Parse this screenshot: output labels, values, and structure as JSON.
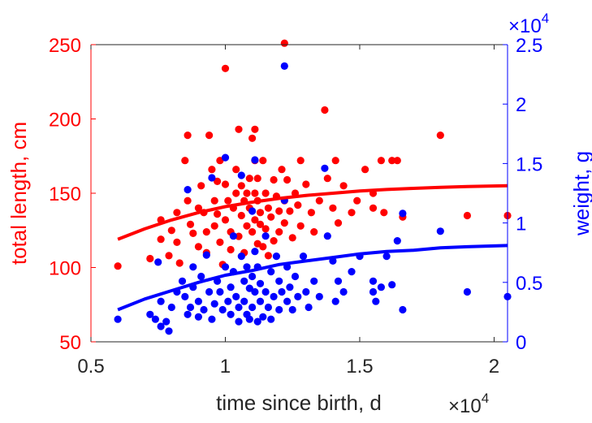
{
  "chart_data": {
    "type": "scatter",
    "xlabel": "time since birth, d",
    "ylabel_left": "total length, cm",
    "ylabel_right": "weight, g",
    "x_exponent_label": "×10",
    "x_exponent": "4",
    "y2_exponent_label": "×10",
    "y2_exponent": "4",
    "xlim": [
      0.5,
      2.05
    ],
    "xticks": [
      0.5,
      1,
      1.5,
      2
    ],
    "xtick_labels": [
      "0.5",
      "1",
      "1.5",
      "2"
    ],
    "ylim": [
      50,
      250
    ],
    "yticks": [
      50,
      100,
      150,
      200,
      250
    ],
    "ytick_labels": [
      "50",
      "100",
      "150",
      "200",
      "250"
    ],
    "y2lim": [
      0,
      2.5
    ],
    "y2ticks": [
      0,
      0.5,
      1,
      1.5,
      2,
      2.5
    ],
    "y2tick_labels": [
      "0",
      "0.5",
      "1",
      "1.5",
      "2",
      "2.5"
    ],
    "grid": false,
    "colors": {
      "length": "#ff0000",
      "weight": "#0000ff",
      "axis": "#262626"
    },
    "series": [
      {
        "axis": "left",
        "color": "#ff0000",
        "points": [
          [
            0.6,
            101
          ],
          [
            0.72,
            106
          ],
          [
            0.76,
            119
          ],
          [
            0.76,
            132
          ],
          [
            0.79,
            108
          ],
          [
            0.8,
            125
          ],
          [
            0.82,
            137
          ],
          [
            0.82,
            117
          ],
          [
            0.83,
            103
          ],
          [
            0.85,
            172
          ],
          [
            0.86,
            189
          ],
          [
            0.86,
            145
          ],
          [
            0.87,
            129
          ],
          [
            0.88,
            123
          ],
          [
            0.9,
            114
          ],
          [
            0.9,
            140
          ],
          [
            0.91,
            155
          ],
          [
            0.92,
            137
          ],
          [
            0.93,
            124
          ],
          [
            0.93,
            110
          ],
          [
            0.94,
            189
          ],
          [
            0.95,
            166
          ],
          [
            0.96,
            145
          ],
          [
            0.96,
            128
          ],
          [
            0.97,
            158
          ],
          [
            0.97,
            136
          ],
          [
            0.98,
            172
          ],
          [
            0.98,
            117
          ],
          [
            0.99,
            102
          ],
          [
            1.0,
            234
          ],
          [
            1.0,
            156
          ],
          [
            1.0,
            132
          ],
          [
            1.01,
            145
          ],
          [
            1.02,
            112
          ],
          [
            1.02,
            124
          ],
          [
            1.03,
            140
          ],
          [
            1.04,
            150
          ],
          [
            1.04,
            166
          ],
          [
            1.05,
            193
          ],
          [
            1.05,
            121
          ],
          [
            1.06,
            135
          ],
          [
            1.06,
            155
          ],
          [
            1.07,
            145
          ],
          [
            1.07,
            110
          ],
          [
            1.08,
            128
          ],
          [
            1.08,
            150
          ],
          [
            1.09,
            160
          ],
          [
            1.09,
            140
          ],
          [
            1.1,
            187
          ],
          [
            1.1,
            124
          ],
          [
            1.11,
            193
          ],
          [
            1.11,
            172
          ],
          [
            1.11,
            150
          ],
          [
            1.11,
            132
          ],
          [
            1.12,
            116
          ],
          [
            1.12,
            145
          ],
          [
            1.12,
            160
          ],
          [
            1.13,
            137
          ],
          [
            1.13,
            129
          ],
          [
            1.14,
            172
          ],
          [
            1.14,
            114
          ],
          [
            1.15,
            150
          ],
          [
            1.15,
            126
          ],
          [
            1.16,
            140
          ],
          [
            1.16,
            108
          ],
          [
            1.17,
            134
          ],
          [
            1.18,
            159
          ],
          [
            1.18,
            118
          ],
          [
            1.19,
            148
          ],
          [
            1.2,
            138
          ],
          [
            1.2,
            124
          ],
          [
            1.21,
            166
          ],
          [
            1.22,
            251
          ],
          [
            1.22,
            145
          ],
          [
            1.22,
            130
          ],
          [
            1.23,
            159
          ],
          [
            1.24,
            138
          ],
          [
            1.25,
            120
          ],
          [
            1.26,
            150
          ],
          [
            1.27,
            142
          ],
          [
            1.28,
            172
          ],
          [
            1.28,
            128
          ],
          [
            1.3,
            156
          ],
          [
            1.32,
            137
          ],
          [
            1.33,
            124
          ],
          [
            1.35,
            145
          ],
          [
            1.37,
            206
          ],
          [
            1.38,
            160
          ],
          [
            1.4,
            140
          ],
          [
            1.41,
            172
          ],
          [
            1.42,
            130
          ],
          [
            1.44,
            155
          ],
          [
            1.47,
            137
          ],
          [
            1.49,
            145
          ],
          [
            1.52,
            166
          ],
          [
            1.55,
            150
          ],
          [
            1.55,
            140
          ],
          [
            1.58,
            172
          ],
          [
            1.59,
            137
          ],
          [
            1.62,
            172
          ],
          [
            1.64,
            172
          ],
          [
            1.66,
            134
          ],
          [
            1.8,
            189
          ],
          [
            1.9,
            135
          ],
          [
            2.05,
            135
          ]
        ]
      },
      {
        "axis": "right",
        "color": "#0000ff",
        "points": [
          [
            0.6,
            0.19
          ],
          [
            0.72,
            0.23
          ],
          [
            0.74,
            0.19
          ],
          [
            0.75,
            0.67
          ],
          [
            0.76,
            0.34
          ],
          [
            0.76,
            0.13
          ],
          [
            0.78,
            0.17
          ],
          [
            0.79,
            0.09
          ],
          [
            0.8,
            0.29
          ],
          [
            0.82,
            0.42
          ],
          [
            0.84,
            0.51
          ],
          [
            0.85,
            0.38
          ],
          [
            0.86,
            1.28
          ],
          [
            0.86,
            0.23
          ],
          [
            0.87,
            0.29
          ],
          [
            0.88,
            0.63
          ],
          [
            0.88,
            0.46
          ],
          [
            0.9,
            0.34
          ],
          [
            0.9,
            0.21
          ],
          [
            0.91,
            0.55
          ],
          [
            0.92,
            0.27
          ],
          [
            0.93,
            0.73
          ],
          [
            0.94,
            0.42
          ],
          [
            0.95,
            1.38
          ],
          [
            0.95,
            0.19
          ],
          [
            0.96,
            0.32
          ],
          [
            0.97,
            0.51
          ],
          [
            0.98,
            0.42
          ],
          [
            0.99,
            0.27
          ],
          [
            1.0,
            1.55
          ],
          [
            1.0,
            0.63
          ],
          [
            1.01,
            0.34
          ],
          [
            1.02,
            0.46
          ],
          [
            1.02,
            0.23
          ],
          [
            1.03,
            0.89
          ],
          [
            1.03,
            0.59
          ],
          [
            1.04,
            0.38
          ],
          [
            1.05,
            0.29
          ],
          [
            1.05,
            0.17
          ],
          [
            1.06,
            1.4
          ],
          [
            1.06,
            0.72
          ],
          [
            1.07,
            0.51
          ],
          [
            1.07,
            0.34
          ],
          [
            1.08,
            0.63
          ],
          [
            1.08,
            0.23
          ],
          [
            1.09,
            0.45
          ],
          [
            1.09,
            0.19
          ],
          [
            1.1,
            1.1
          ],
          [
            1.1,
            0.55
          ],
          [
            1.1,
            0.29
          ],
          [
            1.11,
            1.53
          ],
          [
            1.11,
            0.76
          ],
          [
            1.11,
            0.42
          ],
          [
            1.12,
            0.17
          ],
          [
            1.12,
            0.63
          ],
          [
            1.13,
            0.34
          ],
          [
            1.13,
            0.49
          ],
          [
            1.14,
            0.21
          ],
          [
            1.15,
            0.89
          ],
          [
            1.15,
            0.42
          ],
          [
            1.16,
            0.29
          ],
          [
            1.17,
            0.59
          ],
          [
            1.17,
            0.19
          ],
          [
            1.18,
            0.38
          ],
          [
            1.19,
            0.72
          ],
          [
            1.2,
            0.51
          ],
          [
            1.2,
            0.27
          ],
          [
            1.21,
            0.42
          ],
          [
            1.22,
            2.32
          ],
          [
            1.22,
            1.19
          ],
          [
            1.23,
            0.63
          ],
          [
            1.23,
            0.34
          ],
          [
            1.24,
            0.46
          ],
          [
            1.25,
            0.27
          ],
          [
            1.26,
            0.55
          ],
          [
            1.27,
            0.38
          ],
          [
            1.29,
            0.72
          ],
          [
            1.3,
            0.42
          ],
          [
            1.31,
            0.29
          ],
          [
            1.33,
            0.51
          ],
          [
            1.35,
            0.38
          ],
          [
            1.37,
            1.46
          ],
          [
            1.38,
            0.89
          ],
          [
            1.4,
            0.68
          ],
          [
            1.41,
            0.34
          ],
          [
            1.42,
            0.51
          ],
          [
            1.44,
            0.42
          ],
          [
            1.47,
            0.59
          ],
          [
            1.5,
            0.72
          ],
          [
            1.55,
            0.51
          ],
          [
            1.55,
            0.42
          ],
          [
            1.56,
            0.34
          ],
          [
            1.58,
            0.46
          ],
          [
            1.6,
            0.72
          ],
          [
            1.62,
            0.48
          ],
          [
            1.64,
            0.85
          ],
          [
            1.66,
            1.08
          ],
          [
            1.66,
            0.27
          ],
          [
            1.8,
            0.93
          ],
          [
            1.9,
            0.42
          ],
          [
            2.05,
            0.38
          ]
        ]
      },
      {
        "axis": "left",
        "type": "line",
        "color": "#ff0000",
        "points": [
          [
            0.6,
            119
          ],
          [
            0.7,
            126
          ],
          [
            0.8,
            132
          ],
          [
            0.9,
            137
          ],
          [
            1.0,
            141
          ],
          [
            1.1,
            144
          ],
          [
            1.2,
            146.5
          ],
          [
            1.3,
            148.5
          ],
          [
            1.4,
            150
          ],
          [
            1.5,
            151.5
          ],
          [
            1.6,
            152.5
          ],
          [
            1.7,
            153.3
          ],
          [
            1.8,
            154
          ],
          [
            1.9,
            154.5
          ],
          [
            2.05,
            155
          ]
        ]
      },
      {
        "axis": "right",
        "type": "line",
        "color": "#0000ff",
        "points": [
          [
            0.6,
            0.27
          ],
          [
            0.7,
            0.36
          ],
          [
            0.8,
            0.43
          ],
          [
            0.9,
            0.5
          ],
          [
            1.0,
            0.56
          ],
          [
            1.1,
            0.6
          ],
          [
            1.2,
            0.65
          ],
          [
            1.3,
            0.68
          ],
          [
            1.4,
            0.71
          ],
          [
            1.5,
            0.74
          ],
          [
            1.6,
            0.76
          ],
          [
            1.7,
            0.77
          ],
          [
            1.8,
            0.79
          ],
          [
            1.9,
            0.8
          ],
          [
            2.05,
            0.81
          ]
        ]
      }
    ]
  }
}
